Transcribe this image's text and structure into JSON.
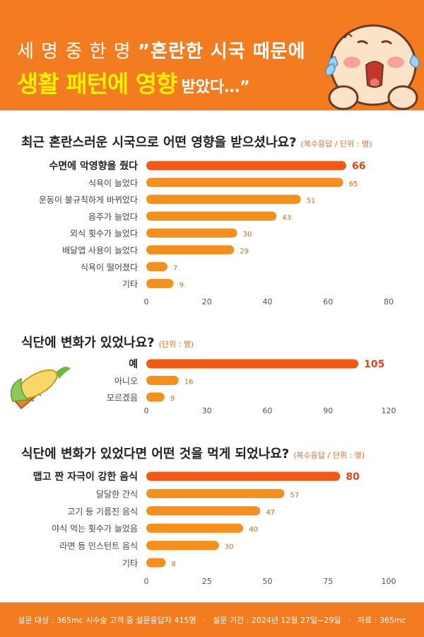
{
  "header": {
    "line1_prefix": "세 명 중 한 명",
    "line1_quote": "”혼란한 시국 때문에",
    "line2_main": "생활 패턴에 영향",
    "line2_suffix": "받았다…”"
  },
  "colors": {
    "brand_orange": "#f47c20",
    "bar": "#f5901e",
    "highlight_bar": "#f05a16",
    "header_highlight": "#fff000"
  },
  "chart_data": [
    {
      "type": "bar",
      "orientation": "horizontal",
      "title": "최근 혼란스러운 시국으로 어떤 영향을 받으셨나요?",
      "unit_note": "(복수응답 / 단위 : 명)",
      "categories": [
        "수면에 악영향을 줬다",
        "식욕이 늘었다",
        "운동이 불규칙하게 바뀌었다",
        "음주가 늘었다",
        "외식 횟수가 늘었다",
        "배달앱 사용이 늘었다",
        "식욕이 떨어졌다",
        "기타"
      ],
      "values": [
        66,
        65,
        51,
        43,
        30,
        29,
        7,
        9
      ],
      "value_labels": [
        "66",
        "65",
        "51",
        "43",
        "30",
        "29",
        "7",
        "9"
      ],
      "xlim": [
        0,
        80
      ],
      "xticks": [
        "0",
        "20",
        "40",
        "60",
        "80"
      ],
      "highlight_index": 0
    },
    {
      "type": "bar",
      "orientation": "horizontal",
      "title": "식단에 변화가 있었나요?",
      "unit_note": "(단위 : 명)",
      "categories": [
        "예",
        "아니오",
        "모르겠음"
      ],
      "values": [
        105,
        16,
        9
      ],
      "value_labels": [
        "105",
        "16",
        "9"
      ],
      "xlim": [
        0,
        120
      ],
      "xticks": [
        "0",
        "30",
        "60",
        "90",
        "120"
      ],
      "highlight_index": 0
    },
    {
      "type": "bar",
      "orientation": "horizontal",
      "title": "식단에 변화가 있었다면 어떤 것을 먹게 되었나요?",
      "unit_note": "(복수응답 / 단위 : 명)",
      "categories": [
        "맵고 짠 자극이 강한 음식",
        "달달한 간식",
        "고기 등 기름진 음식",
        "야식 먹는 횟수가 늘었음",
        "라면 등 인스턴트 음식",
        "기타"
      ],
      "values": [
        80,
        57,
        47,
        40,
        30,
        8
      ],
      "value_labels": [
        "80",
        "57",
        "47",
        "40",
        "30",
        "8"
      ],
      "xlim": [
        0,
        100
      ],
      "xticks": [
        "0",
        "25",
        "50",
        "75",
        "100"
      ],
      "highlight_index": 0
    }
  ],
  "footer": {
    "target": "설문 대상 : 365mc 시수술 고객 중 설문응답자 415명",
    "period": "설문 기간 : 2024년 12월 27일~29일",
    "source": "자료 : 365mc",
    "separator": "·"
  }
}
